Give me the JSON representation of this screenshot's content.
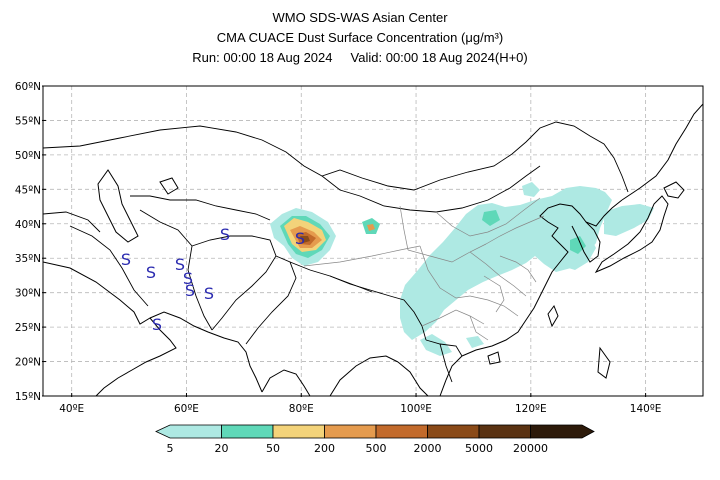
{
  "header": {
    "center": "WMO SDS-WAS Asian Center",
    "product": "CMA CUACE Dust Surface Concentration",
    "unit": "(μg/m³)",
    "run": "Run: 00:00 18 Aug 2024",
    "valid": "Valid: 00:00 18 Aug 2024(H+0)"
  },
  "map": {
    "lon_ticks": [
      "40ºE",
      "60ºE",
      "80ºE",
      "100ºE",
      "120ºE",
      "140ºE"
    ],
    "lat_ticks": [
      "60ºN",
      "55ºN",
      "50ºN",
      "45ºN",
      "40ºN",
      "35ºN",
      "30ºN",
      "25ºN",
      "20ºN",
      "15ºN"
    ],
    "lon_range": [
      35,
      150
    ],
    "lat_range": [
      15,
      60
    ],
    "grid": "dashed",
    "duststorm_symbol": "S",
    "duststorm_color": "#2b2bb0"
  },
  "colorbar": {
    "labels": [
      "5",
      "20",
      "50",
      "200",
      "500",
      "2000",
      "5000",
      "20000"
    ],
    "colors": [
      "#aee9e3",
      "#5fd8b8",
      "#f3d37a",
      "#e59b4e",
      "#c26a2b",
      "#8a4a18",
      "#5a3212",
      "#2d1a0a"
    ]
  }
}
